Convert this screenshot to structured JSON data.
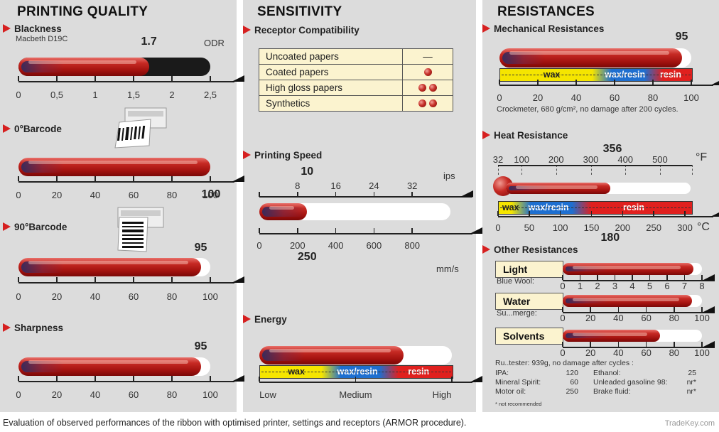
{
  "panels": {
    "quality": {
      "title": "PRINTING QUALITY"
    },
    "sensitivity": {
      "title": "SENSITIVITY"
    },
    "resistances": {
      "title": "RESISTANCES"
    }
  },
  "caption": "Evaluation of observed performances of the ribbon with optimised printer, settings and receptors (ARMOR procedure).",
  "watermark": "TradeKey.com",
  "colors": {
    "panel": "#dcdcdc",
    "red": "#c62a24",
    "wax": "#f5e500",
    "wax_resin": "#1e6fd0",
    "resin": "#e0201e",
    "table": "#fbf3cf"
  },
  "chart_data": [
    {
      "type": "bar",
      "section": "Blackness",
      "subtitle": "Macbeth D19C",
      "unit": "ODR",
      "value": 1.7,
      "value_label": "1.7",
      "track": "dark",
      "ylim": [
        0,
        2.5
      ],
      "ticks": [
        "0",
        "0,5",
        "1",
        "1,5",
        "2",
        "2,5"
      ],
      "tick_values": [
        0,
        0.5,
        1,
        1.5,
        2,
        2.5
      ],
      "tile_max": 2.5
    },
    {
      "type": "bar",
      "section": "0°Barcode",
      "value": 100,
      "value_label": "100",
      "ylim": [
        0,
        100
      ],
      "ticks": [
        "0",
        "20",
        "40",
        "60",
        "80",
        "100"
      ],
      "tick_values": [
        0,
        20,
        40,
        60,
        80,
        100
      ],
      "tile_max": 100
    },
    {
      "type": "bar",
      "section": "90°Barcode",
      "value": 95,
      "value_label": "95",
      "ylim": [
        0,
        100
      ],
      "ticks": [
        "0",
        "20",
        "40",
        "60",
        "80",
        "100"
      ],
      "tick_values": [
        0,
        20,
        40,
        60,
        80,
        100
      ],
      "tile_max": 100
    },
    {
      "type": "bar",
      "section": "Sharpness",
      "value": 95,
      "value_label": "95",
      "ylim": [
        0,
        100
      ],
      "ticks": [
        "0",
        "20",
        "40",
        "60",
        "80",
        "100"
      ],
      "tick_values": [
        0,
        20,
        40,
        60,
        80,
        100
      ],
      "tile_max": 100
    },
    {
      "type": "table",
      "section": "Receptor Compatibility",
      "rows": [
        {
          "label": "Uncoated papers",
          "rating": 0,
          "symbol": "—"
        },
        {
          "label": "Coated papers",
          "rating": 1
        },
        {
          "label": "High gloss papers",
          "rating": 2
        },
        {
          "label": "Synthetics",
          "rating": 2
        }
      ]
    },
    {
      "type": "bar",
      "section": "Printing Speed",
      "value": 250,
      "value_label": "250",
      "unit": "mm/s",
      "ylim": [
        0,
        1000
      ],
      "ticks": [
        "0",
        "200",
        "400",
        "600",
        "800"
      ],
      "tick_values": [
        0,
        200,
        400,
        600,
        800
      ],
      "secondary_value": 10,
      "secondary_value_label": "10",
      "secondary_unit": "ips",
      "secondary_ticks": [
        "8",
        "16",
        "24",
        "32"
      ],
      "secondary_tick_values": [
        200,
        400,
        600,
        800
      ]
    },
    {
      "type": "bar",
      "section": "Energy",
      "value": 75,
      "ylim": [
        0,
        100
      ],
      "bands": [
        {
          "label": "wax",
          "range": [
            0,
            37
          ]
        },
        {
          "label": "wax/resin",
          "range": [
            37,
            67
          ]
        },
        {
          "label": "resin",
          "range": [
            67,
            100
          ]
        }
      ],
      "ticks": [
        "Low",
        "Medium",
        "High"
      ],
      "tick_values": [
        0,
        50,
        100
      ]
    },
    {
      "type": "bar",
      "section": "Mechanical Resistances",
      "value": 95,
      "value_label": "95",
      "note": "Crockmeter, 680 g/cm², no damage after 200 cycles.",
      "ylim": [
        0,
        100
      ],
      "bands": [
        {
          "label": "wax",
          "range": [
            0,
            53
          ]
        },
        {
          "label": "wax/resin",
          "range": [
            53,
            80
          ]
        },
        {
          "label": "resin",
          "range": [
            80,
            100
          ]
        }
      ],
      "ticks": [
        "0",
        "20",
        "40",
        "60",
        "80",
        "100"
      ],
      "tick_values": [
        0,
        20,
        40,
        60,
        80,
        100
      ]
    },
    {
      "type": "bar",
      "section": "Heat Resistance",
      "value": 180,
      "value_label": "180",
      "secondary_value_label": "356",
      "secondary_unit": "°F",
      "unit": "°C",
      "ylim": [
        0,
        300
      ],
      "bands": [
        {
          "label": "wax",
          "range": [
            0,
            35
          ]
        },
        {
          "label": "wax/resin",
          "range": [
            35,
            130
          ]
        },
        {
          "label": "resin",
          "range": [
            130,
            300
          ]
        }
      ],
      "ticks": [
        "0",
        "50",
        "100",
        "150",
        "200",
        "250",
        "300"
      ],
      "tick_values": [
        0,
        50,
        100,
        150,
        200,
        250,
        300
      ],
      "secondary_ticks": [
        "32",
        "100",
        "200",
        "300",
        "400",
        "500"
      ],
      "secondary_tick_values": [
        0,
        37.8,
        93.3,
        148.9,
        204.4,
        260
      ]
    },
    {
      "type": "bar",
      "section": "Other Resistances",
      "items": [
        {
          "label": "Light",
          "sub": "Blue Wool:",
          "value": 7.5,
          "ylim": [
            0,
            8
          ],
          "ticks": [
            "0",
            "1",
            "2",
            "3",
            "4",
            "5",
            "6",
            "7",
            "8"
          ],
          "tick_values": [
            0,
            1,
            2,
            3,
            4,
            5,
            6,
            7,
            8
          ]
        },
        {
          "label": "Water",
          "sub": "Su...merge:",
          "value": 93,
          "ylim": [
            0,
            100
          ],
          "ticks": [
            "0",
            "20",
            "40",
            "60",
            "80",
            "100"
          ],
          "tick_values": [
            0,
            20,
            40,
            60,
            80,
            100
          ]
        },
        {
          "label": "Solvents",
          "value": 70,
          "ylim": [
            0,
            100
          ],
          "ticks": [
            "0",
            "20",
            "40",
            "60",
            "80",
            "100"
          ],
          "tick_values": [
            0,
            20,
            40,
            60,
            80,
            100
          ]
        }
      ],
      "solvent_note": "Ru..tester: 939g, no damage after    cycles :",
      "solvent_results": [
        {
          "name": "IPA:",
          "value": "120"
        },
        {
          "name": "Mineral Spirit:",
          "value": "60"
        },
        {
          "name": "Motor oil:",
          "value": "250"
        },
        {
          "name": "Ethanol:",
          "value": "25"
        },
        {
          "name": "Unleaded gasoline 98:",
          "value": "nr*"
        },
        {
          "name": "Brake fluid:",
          "value": "nr*"
        }
      ],
      "footnote": "* not recommended"
    }
  ]
}
